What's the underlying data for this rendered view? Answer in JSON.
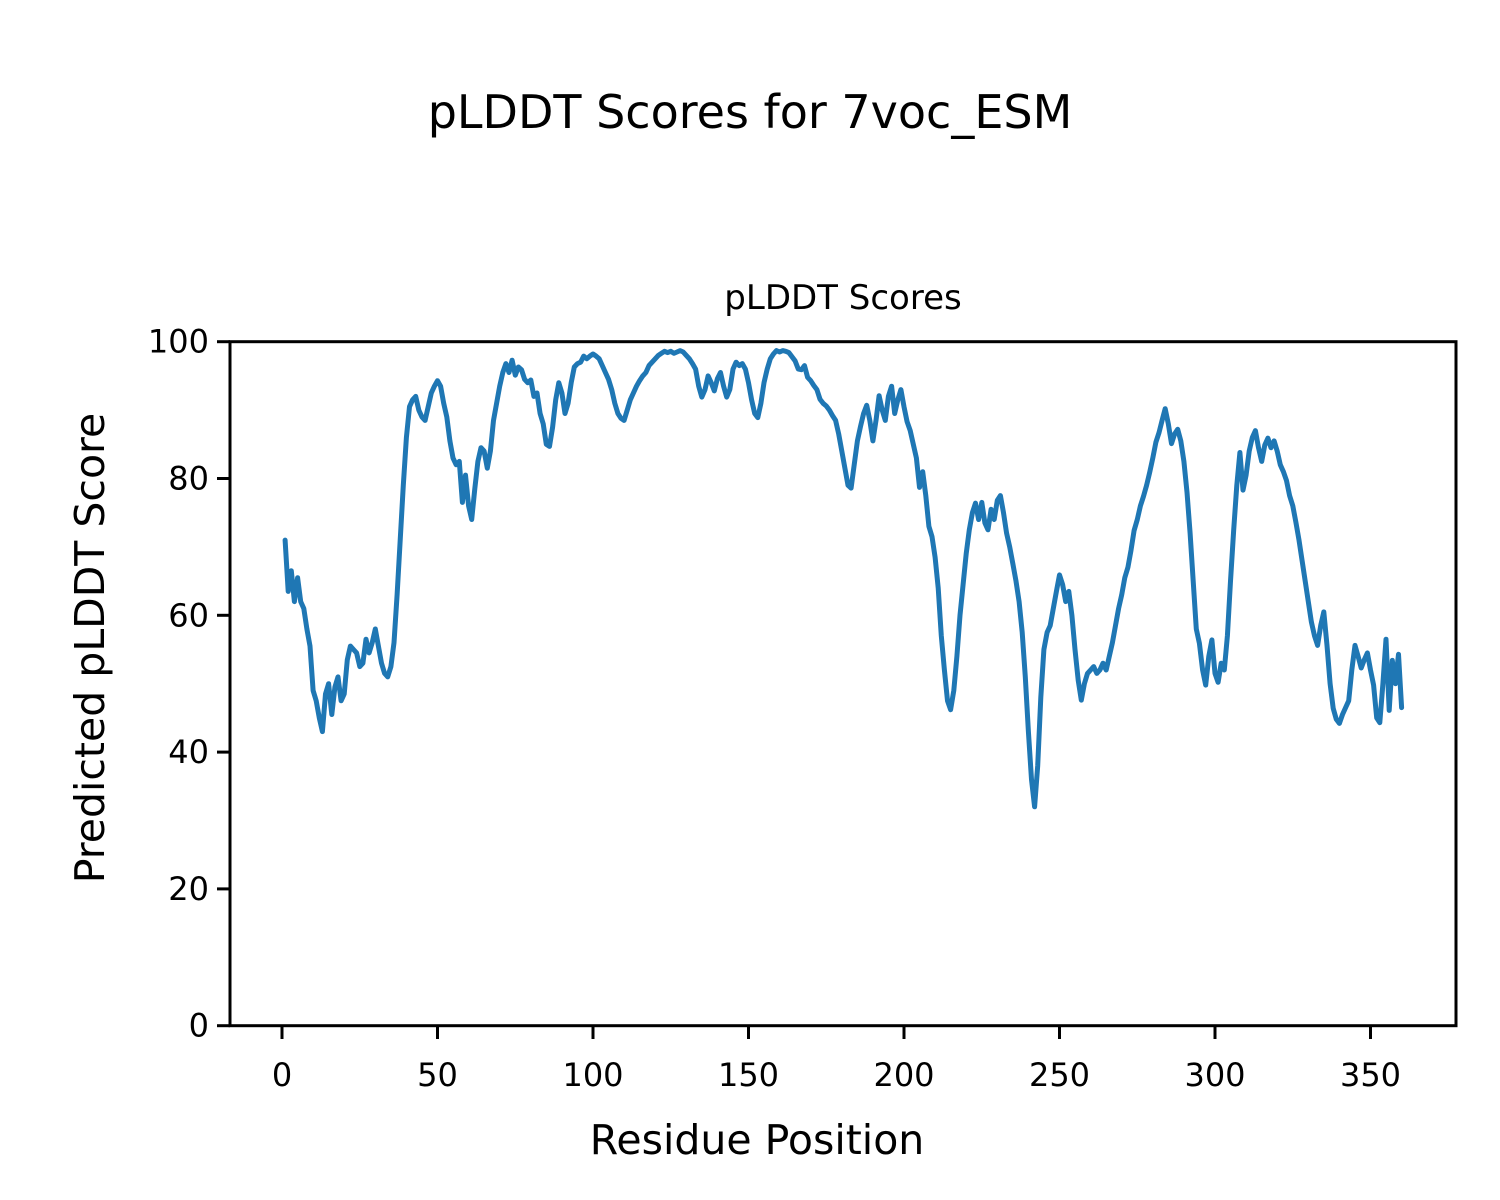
{
  "figure": {
    "background": "#ffffff",
    "suptitle": "pLDDT Scores for 7voc_ESM"
  },
  "chart_data": {
    "type": "line",
    "title": "pLDDT Scores",
    "xlabel": "Residue Position",
    "ylabel": "Predicted pLDDT Score",
    "legend": "none",
    "grid": false,
    "line_color": "#1f77b4",
    "spine_color": "#000000",
    "xlim": [
      -18,
      378
    ],
    "ylim": [
      0,
      100
    ],
    "x_ticks": [
      0,
      50,
      100,
      150,
      200,
      250,
      300,
      350
    ],
    "y_ticks": [
      0,
      20,
      40,
      60,
      80,
      100
    ],
    "x_start": 1,
    "values": [
      71.0,
      63.5,
      66.5,
      62.0,
      65.5,
      62.0,
      61.0,
      58.0,
      55.5,
      49.0,
      47.5,
      45.0,
      43.0,
      48.5,
      50.0,
      45.5,
      49.5,
      51.0,
      47.5,
      48.5,
      53.5,
      55.5,
      55.0,
      54.5,
      52.5,
      53.0,
      56.5,
      54.5,
      56.0,
      58.0,
      55.5,
      53.0,
      51.5,
      51.0,
      52.5,
      56.0,
      63.0,
      71.0,
      79.0,
      86.0,
      90.5,
      91.5,
      92.0,
      90.0,
      89.0,
      88.5,
      90.5,
      92.5,
      93.5,
      94.3,
      93.5,
      91.0,
      89.0,
      85.5,
      83.0,
      82.0,
      82.5,
      76.5,
      80.5,
      76.0,
      74.0,
      78.5,
      82.5,
      84.5,
      84.0,
      81.5,
      84.0,
      88.5,
      91.0,
      93.5,
      95.5,
      96.8,
      95.5,
      97.3,
      95.1,
      96.3,
      95.9,
      94.5,
      94.0,
      94.4,
      92.0,
      92.5,
      89.5,
      88.0,
      85.0,
      84.7,
      87.5,
      91.5,
      94.0,
      92.5,
      89.5,
      91.0,
      94.0,
      96.3,
      96.8,
      97.0,
      97.9,
      97.5,
      97.9,
      98.2,
      97.9,
      97.5,
      96.5,
      95.5,
      94.5,
      93.0,
      91.0,
      89.5,
      88.8,
      88.5,
      90.0,
      91.5,
      92.5,
      93.5,
      94.3,
      95.0,
      95.5,
      96.5,
      97.0,
      97.5,
      98.0,
      98.3,
      98.6,
      98.4,
      98.6,
      98.3,
      98.5,
      98.7,
      98.5,
      98.0,
      97.5,
      96.8,
      96.0,
      93.5,
      91.9,
      93.0,
      95.0,
      94.0,
      92.8,
      94.6,
      95.5,
      93.5,
      91.9,
      93.0,
      96.0,
      97.0,
      96.5,
      96.8,
      96.0,
      94.0,
      91.5,
      89.5,
      88.9,
      91.0,
      94.0,
      96.0,
      97.5,
      98.2,
      98.7,
      98.5,
      98.7,
      98.6,
      98.4,
      97.8,
      97.2,
      96.0,
      95.9,
      96.5,
      94.8,
      94.3,
      93.6,
      93.0,
      91.6,
      91.0,
      90.6,
      90.0,
      89.2,
      88.5,
      86.5,
      84.0,
      81.5,
      79.0,
      78.6,
      82.0,
      85.5,
      87.6,
      89.5,
      90.7,
      88.5,
      85.5,
      88.5,
      92.1,
      90.0,
      88.5,
      92.0,
      93.5,
      89.5,
      91.5,
      93.0,
      90.5,
      88.3,
      87.0,
      85.0,
      83.0,
      78.7,
      81.0,
      77.5,
      73.0,
      71.5,
      68.5,
      64.0,
      57.0,
      52.0,
      47.5,
      46.2,
      49.0,
      54.0,
      60.0,
      64.5,
      69.0,
      72.5,
      75.0,
      76.4,
      74.0,
      76.5,
      73.5,
      72.5,
      75.5,
      74.0,
      76.8,
      77.5,
      75.0,
      72.0,
      70.0,
      67.5,
      65.0,
      62.0,
      57.5,
      51.0,
      43.0,
      36.0,
      32.0,
      38.0,
      48.0,
      55.0,
      57.5,
      58.5,
      61.0,
      63.5,
      65.9,
      64.5,
      62.0,
      63.5,
      60.0,
      55.0,
      50.5,
      47.6,
      50.0,
      51.5,
      52.0,
      52.5,
      51.5,
      52.0,
      53.0,
      52.0,
      54.0,
      56.0,
      58.5,
      61.0,
      63.0,
      65.5,
      67.0,
      69.5,
      72.4,
      74.0,
      76.0,
      77.4,
      79.0,
      80.9,
      83.0,
      85.3,
      86.7,
      88.5,
      90.2,
      88.0,
      85.1,
      86.5,
      87.2,
      85.5,
      82.5,
      78.0,
      72.0,
      65.0,
      58.0,
      55.9,
      52.0,
      49.8,
      54.0,
      56.4,
      51.5,
      50.2,
      53.0,
      52.0,
      57.0,
      65.0,
      72.5,
      79.0,
      83.8,
      78.3,
      80.5,
      84.0,
      86.0,
      87.0,
      84.5,
      82.5,
      84.9,
      85.9,
      84.5,
      85.5,
      84.0,
      82.0,
      81.0,
      79.7,
      77.5,
      76.0,
      73.6,
      71.0,
      68.0,
      65.0,
      62.0,
      59.0,
      57.0,
      55.6,
      58.5,
      60.5,
      55.6,
      50.0,
      46.4,
      44.8,
      44.2,
      45.5,
      46.5,
      47.5,
      52.0,
      55.6,
      54.0,
      52.3,
      53.5,
      54.5,
      52.0,
      49.8,
      45.0,
      44.3,
      50.0,
      56.5,
      46.1,
      53.4,
      50.0,
      54.3,
      46.5
    ]
  }
}
